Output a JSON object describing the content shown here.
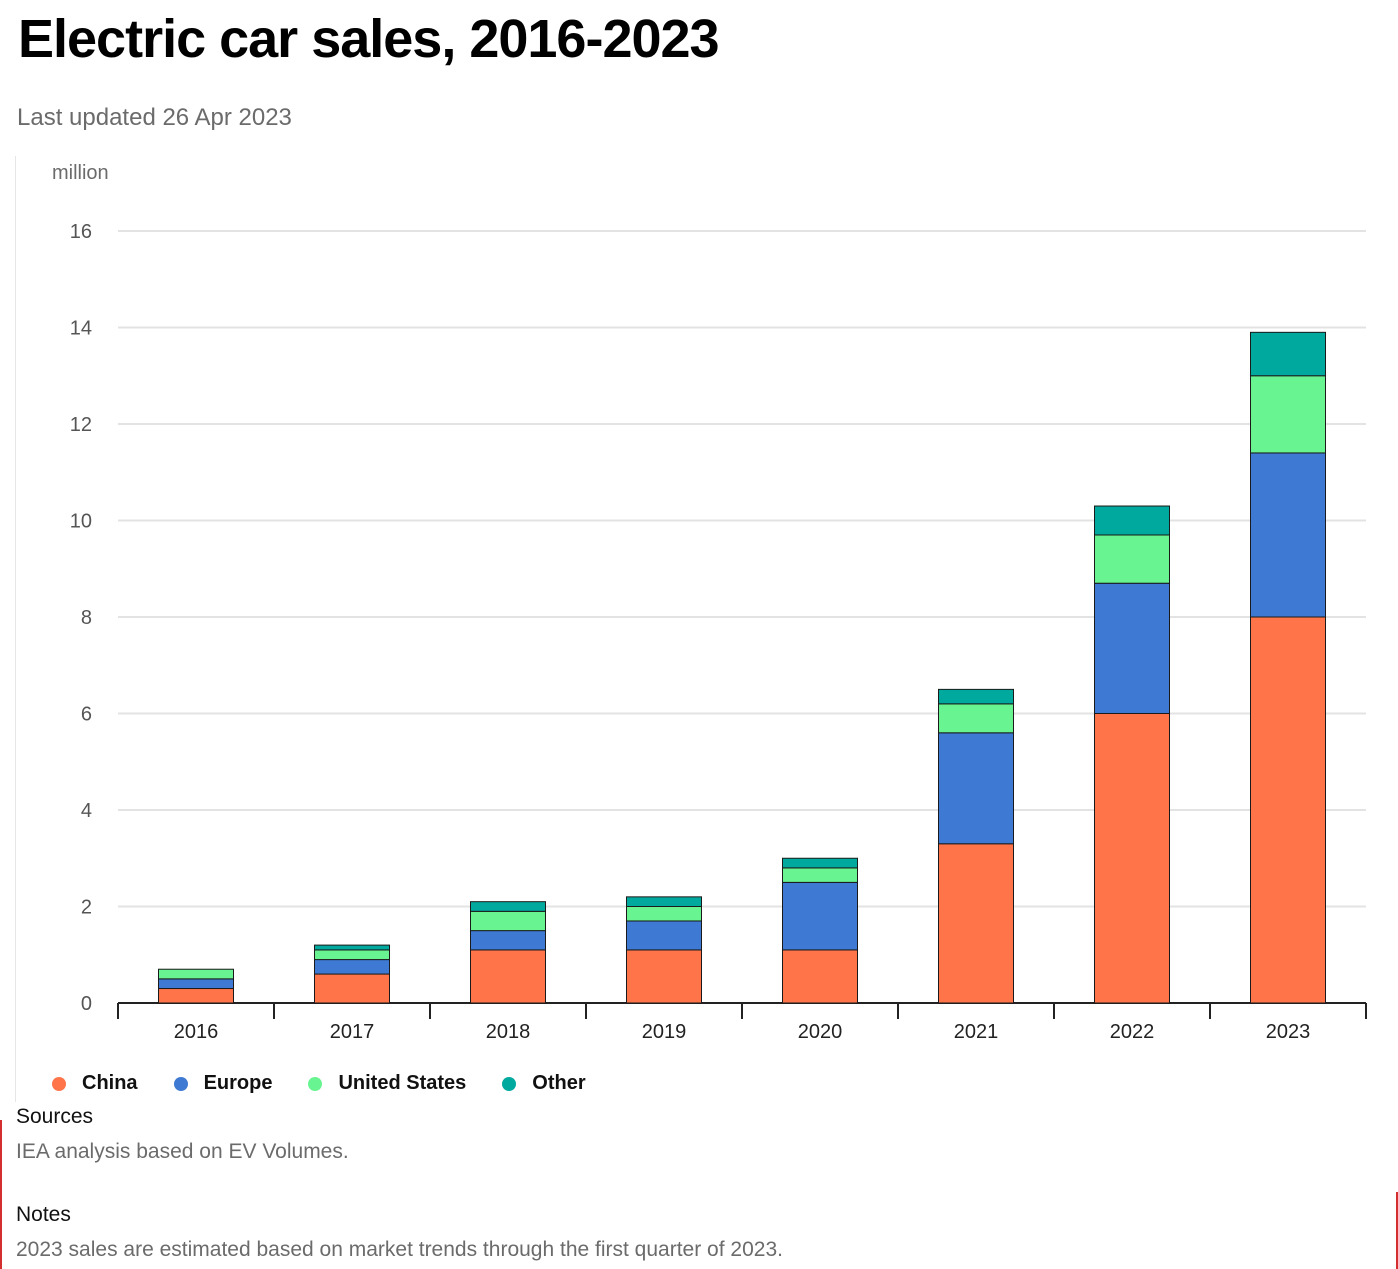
{
  "title": "Electric car sales, 2016-2023",
  "subtitle": "Last updated 26 Apr 2023",
  "chart_data": {
    "type": "bar",
    "stacked": true,
    "unit_label": "million",
    "categories": [
      "2016",
      "2017",
      "2018",
      "2019",
      "2020",
      "2021",
      "2022",
      "2023"
    ],
    "series": [
      {
        "name": "China",
        "color": "#ff7549",
        "values": [
          0.3,
          0.6,
          1.1,
          1.1,
          1.1,
          3.3,
          6.0,
          8.0
        ]
      },
      {
        "name": "Europe",
        "color": "#3e7ad3",
        "values": [
          0.2,
          0.3,
          0.4,
          0.6,
          1.4,
          2.3,
          2.7,
          3.4
        ]
      },
      {
        "name": "United States",
        "color": "#68f591",
        "values": [
          0.2,
          0.2,
          0.4,
          0.3,
          0.3,
          0.6,
          1.0,
          1.6
        ]
      },
      {
        "name": "Other",
        "color": "#00a99d",
        "values": [
          0.0,
          0.1,
          0.2,
          0.2,
          0.2,
          0.3,
          0.6,
          0.9
        ]
      }
    ],
    "yticks": [
      0,
      2,
      4,
      6,
      8,
      10,
      12,
      14,
      16
    ],
    "ylim": [
      0,
      16
    ],
    "grid": true,
    "legend_position": "bottom-left"
  },
  "sources": {
    "heading": "Sources",
    "text": "IEA analysis based on EV Volumes."
  },
  "notes": {
    "heading": "Notes",
    "text": "2023 sales are estimated based on market trends through the first quarter of 2023."
  }
}
